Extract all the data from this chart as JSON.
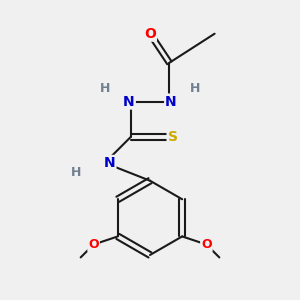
{
  "bg_color": "#f0f0f0",
  "atom_colors": {
    "C": "#1a1a1a",
    "H": "#708090",
    "N": "#0000CC",
    "O": "#FF0000",
    "S": "#ccaa00"
  },
  "figsize": [
    3.0,
    3.0
  ],
  "dpi": 100
}
